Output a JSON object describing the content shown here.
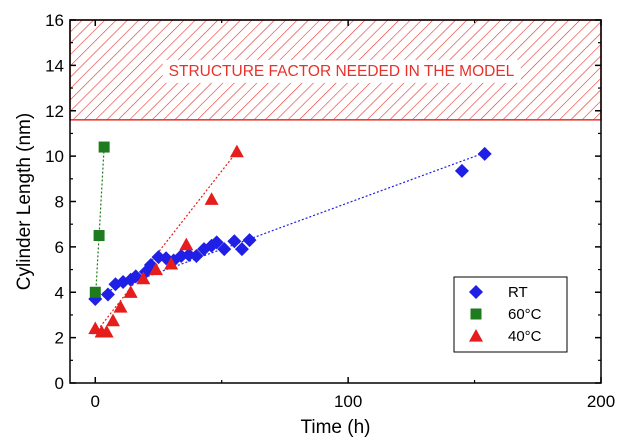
{
  "chart_data": {
    "type": "scatter",
    "title": "",
    "xlabel": "Time (h)",
    "ylabel": "Cylinder Length (nm)",
    "xlim": [
      -10,
      200
    ],
    "ylim": [
      0,
      16
    ],
    "xticks": [
      0,
      100,
      200
    ],
    "yticks": [
      0,
      2,
      4,
      6,
      8,
      10,
      12,
      14,
      16
    ],
    "grid": false,
    "legend_position": "bottom-right",
    "annotation": {
      "text": "STRUCTURE FACTOR NEEDED IN THE MODEL",
      "y_range": [
        11.6,
        16
      ],
      "color": "#e8312a"
    },
    "series": [
      {
        "name": "RT",
        "marker": "diamond",
        "color": "#1f1fe6",
        "points": [
          [
            0,
            3.7
          ],
          [
            5,
            3.9
          ],
          [
            8,
            4.35
          ],
          [
            11,
            4.45
          ],
          [
            14,
            4.55
          ],
          [
            16,
            4.7
          ],
          [
            20,
            4.9
          ],
          [
            22,
            5.2
          ],
          [
            25,
            5.55
          ],
          [
            28,
            5.5
          ],
          [
            31,
            5.4
          ],
          [
            34,
            5.6
          ],
          [
            37,
            5.65
          ],
          [
            40,
            5.6
          ],
          [
            43,
            5.9
          ],
          [
            46,
            6.05
          ],
          [
            48,
            6.2
          ],
          [
            51,
            5.9
          ],
          [
            55,
            6.25
          ],
          [
            58,
            5.9
          ],
          [
            61,
            6.3
          ],
          [
            145,
            9.35
          ],
          [
            154,
            10.1
          ]
        ],
        "fit": [
          [
            0,
            3.85
          ],
          [
            154,
            10.15
          ]
        ]
      },
      {
        "name": "60°C",
        "marker": "square",
        "color": "#1e7b1e",
        "points": [
          [
            0,
            4.0
          ],
          [
            1.5,
            6.5
          ],
          [
            3.5,
            10.4
          ]
        ],
        "fit": [
          [
            0,
            3.6
          ],
          [
            3.5,
            10.4
          ]
        ]
      },
      {
        "name": "40°C",
        "marker": "triangle",
        "color": "#e61d1d",
        "points": [
          [
            0,
            2.4
          ],
          [
            2.5,
            2.25
          ],
          [
            4.5,
            2.25
          ],
          [
            7,
            2.75
          ],
          [
            10,
            3.35
          ],
          [
            14,
            4.0
          ],
          [
            19,
            4.6
          ],
          [
            24,
            5.0
          ],
          [
            30,
            5.25
          ],
          [
            36,
            6.1
          ],
          [
            46,
            8.1
          ],
          [
            56,
            10.2
          ]
        ],
        "fit": [
          [
            0,
            2.2
          ],
          [
            56,
            10.2
          ]
        ]
      }
    ]
  }
}
